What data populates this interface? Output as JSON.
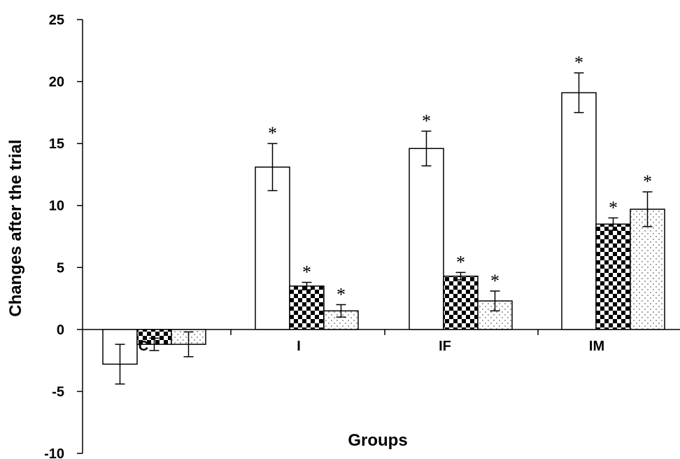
{
  "chart_data": {
    "type": "bar",
    "title": "",
    "xlabel": "Groups",
    "ylabel": "Changes after the trial",
    "ylim": [
      -10,
      25
    ],
    "yticks": [
      -10,
      -5,
      0,
      5,
      10,
      15,
      20,
      25
    ],
    "categories": [
      "C",
      "I",
      "IF",
      "IM"
    ],
    "legend": "none",
    "series": [
      {
        "fill": "white",
        "values": [
          -2.8,
          13.1,
          14.6,
          19.1
        ],
        "errors": [
          1.6,
          1.9,
          1.4,
          1.6
        ],
        "significance": [
          "",
          "*",
          "*",
          "*"
        ]
      },
      {
        "fill": "checkerboard",
        "values": [
          -1.2,
          3.5,
          4.3,
          8.5
        ],
        "errors": [
          0.5,
          0.3,
          0.3,
          0.5
        ],
        "significance": [
          "",
          "*",
          "*",
          "*"
        ]
      },
      {
        "fill": "dotted",
        "values": [
          -1.2,
          1.5,
          2.3,
          9.7
        ],
        "errors": [
          1.0,
          0.5,
          0.8,
          1.4
        ],
        "significance": [
          "",
          "*",
          "*",
          "*"
        ]
      }
    ]
  }
}
